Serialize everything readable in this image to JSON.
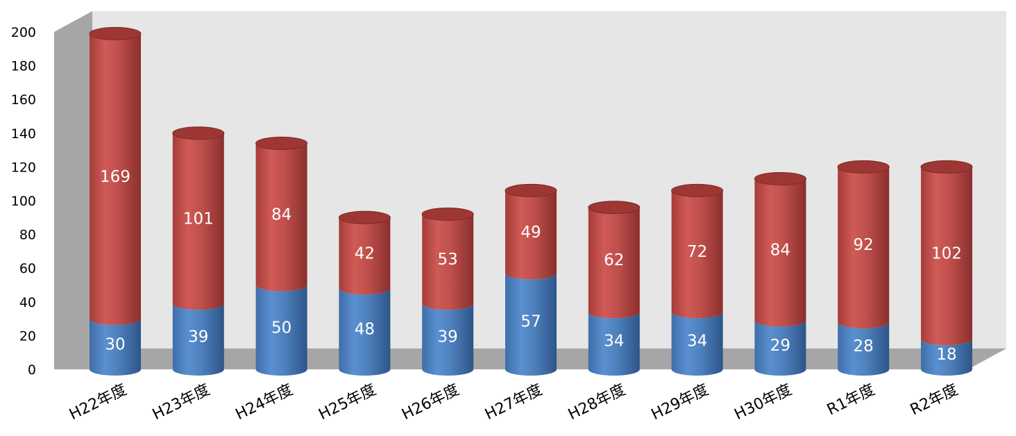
{
  "chart_data": {
    "type": "bar",
    "stacked": true,
    "style": "3d-cylinder",
    "title": "",
    "xlabel": "",
    "ylabel": "",
    "ylim": [
      0,
      200
    ],
    "yticks": [
      0,
      20,
      40,
      60,
      80,
      100,
      120,
      140,
      160,
      180,
      200
    ],
    "grid": false,
    "legend": "none",
    "categories": [
      "H22年度",
      "H23年度",
      "H24年度",
      "H25年度",
      "H26年度",
      "H27年度",
      "H28年度",
      "H29年度",
      "H30年度",
      "R1年度",
      "R2年度"
    ],
    "series": [
      {
        "values": [
          30,
          39,
          50,
          48,
          39,
          57,
          34,
          34,
          29,
          28,
          18
        ],
        "color": "#4f81bd"
      },
      {
        "values": [
          169,
          101,
          84,
          42,
          53,
          49,
          62,
          72,
          84,
          92,
          102
        ],
        "color": "#c0504d"
      }
    ]
  },
  "colors": {
    "wall": "#e6e6e6",
    "side_wall": "#a6a6a6",
    "floor": "#a6a6a6",
    "label_text": "#ffffff"
  }
}
